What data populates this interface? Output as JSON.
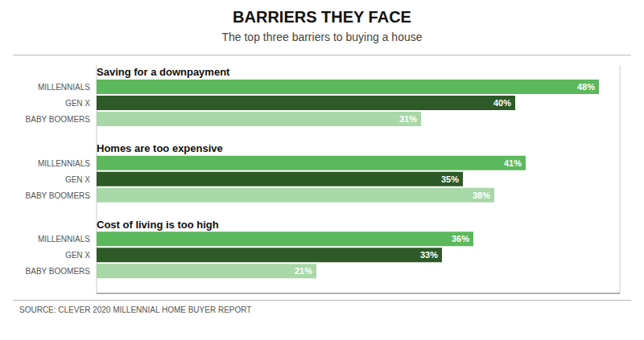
{
  "chart_data": {
    "type": "bar",
    "orientation": "horizontal",
    "title": "BARRIERS THEY FACE",
    "subtitle": "The top three barriers to buying a house",
    "annotations": [
      "SOURCE: CLEVER 2020 MILLENNIAL HOME BUYER REPORT"
    ],
    "categories": [
      "Saving for a downpayment",
      "Homes are too expensive",
      "Cost of living is too high"
    ],
    "series": [
      {
        "name": "MILLENNIALS",
        "color": "#5cb85c",
        "values": [
          48,
          41,
          36
        ],
        "value_labels": [
          "48%",
          "41%",
          "36%"
        ]
      },
      {
        "name": "GEN X",
        "color": "#2d5a27",
        "values": [
          40,
          35,
          33
        ],
        "value_labels": [
          "40%",
          "35%",
          "33%"
        ]
      },
      {
        "name": "BABY BOOMERS",
        "color": "#a8d8a8",
        "values": [
          31,
          38,
          21
        ],
        "value_labels": [
          "31%",
          "38%",
          "21%"
        ]
      }
    ],
    "xlim": [
      0,
      50
    ],
    "xticks": [
      0,
      10,
      20,
      30,
      40,
      50
    ],
    "grid": true,
    "data_labels": true,
    "tick_labels": "y"
  }
}
